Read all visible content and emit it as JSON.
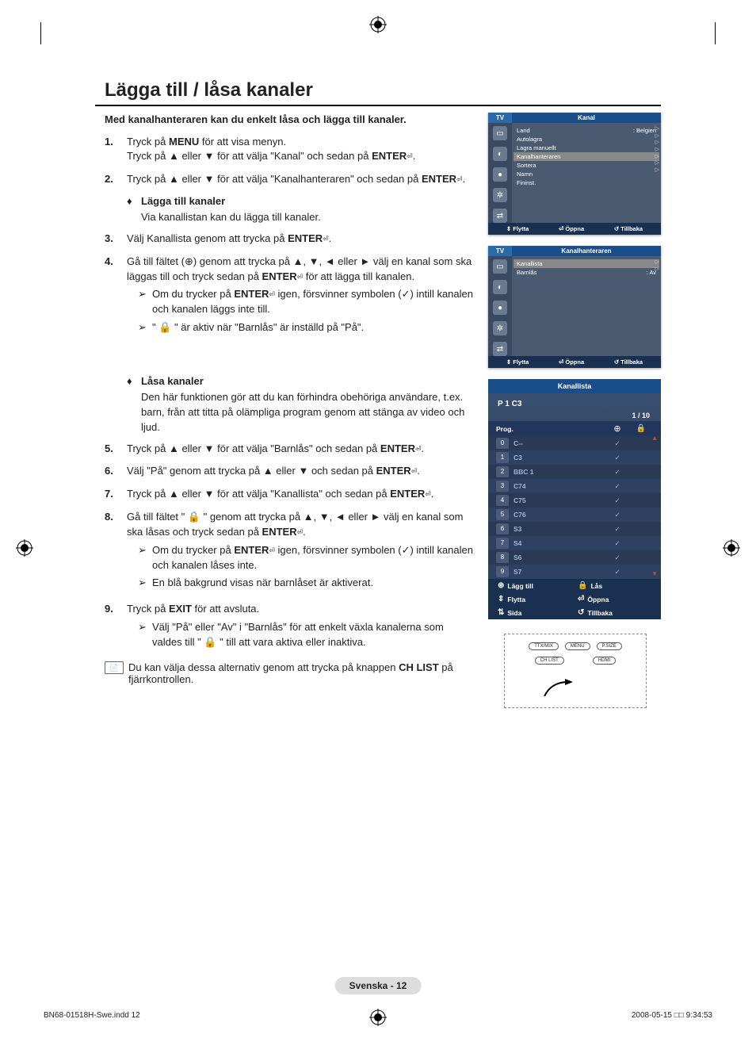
{
  "title": "Lägga till / låsa kanaler",
  "intro": "Med kanalhanteraren kan du enkelt låsa och lägga till kanaler.",
  "steps": [
    {
      "n": "1.",
      "body": "Tryck på <b>MENU</b> för att visa menyn.<br>Tryck på ▲ eller ▼ för att välja \"Kanal\" och sedan på <b>ENTER</b><span class='icon-enter'>⏎</span>."
    },
    {
      "n": "2.",
      "body": "Tryck på ▲ eller ▼ för att välja \"Kanalhanteraren\" och sedan på <b>ENTER</b><span class='icon-enter'>⏎</span>."
    }
  ],
  "sub1_head": "Lägga till kanaler",
  "sub1_body": "Via kanallistan kan du lägga till kanaler.",
  "steps2": [
    {
      "n": "3.",
      "body": "Välj Kanallista genom att trycka på <b>ENTER</b><span class='icon-enter'>⏎</span>."
    },
    {
      "n": "4.",
      "body": "Gå till fältet (⊕) genom att trycka på ▲, ▼, ◄ eller ►  välj en kanal som ska läggas till och tryck sedan på <b>ENTER</b><span class='icon-enter'>⏎</span> för att lägga till kanalen.",
      "notes": [
        "Om du trycker på <b>ENTER</b><span class='icon-enter'>⏎</span> igen, försvinner symbolen (✓) intill kanalen och kanalen läggs inte till.",
        "\" 🔒 \" är aktiv när \"Barnlås\" är inställd på \"På\"."
      ]
    }
  ],
  "sub2_head": "Låsa kanaler",
  "sub2_body": "Den här funktionen gör att du kan förhindra obehöriga användare, t.ex. barn, från att titta på olämpliga program genom att stänga av video och ljud.",
  "steps3": [
    {
      "n": "5.",
      "body": "Tryck på ▲ eller ▼ för att välja \"Barnlås\" och sedan på <b>ENTER</b><span class='icon-enter'>⏎</span>."
    },
    {
      "n": "6.",
      "body": "Välj \"På\" genom att trycka på ▲ eller ▼ och sedan på <b>ENTER</b><span class='icon-enter'>⏎</span>."
    },
    {
      "n": "7.",
      "body": "Tryck på ▲ eller ▼ för att välja \"Kanallista\" och sedan på <b>ENTER</b><span class='icon-enter'>⏎</span>."
    },
    {
      "n": "8.",
      "body": "Gå till fältet \" 🔒 \" genom att trycka på ▲, ▼, ◄ eller ► välj en kanal som ska låsas och tryck sedan på <b>ENTER</b><span class='icon-enter'>⏎</span>.",
      "notes": [
        "Om du trycker på <b>ENTER</b><span class='icon-enter'>⏎</span> igen, försvinner symbolen (✓) intill kanalen och kanalen låses inte.",
        "En blå bakgrund visas när barnlåset är aktiverat."
      ]
    },
    {
      "n": "9.",
      "body": "Tryck på <b>EXIT</b> för att avsluta.",
      "notes": [
        "Välj \"På\" eller \"Av\" i \"Barnlås\" för att enkelt växla kanalerna som valdes till \" 🔒 \" till att vara aktiva eller inaktiva."
      ]
    }
  ],
  "footnote": "Du kan välja dessa alternativ genom att trycka på knappen <b>CH LIST</b> på fjärrkontrollen.",
  "page_label": "Svenska - 12",
  "footer_left": "BN68-01518H-Swe.indd   12",
  "footer_right": "2008-05-15   □□ 9:34:53",
  "panel1": {
    "tab": "TV",
    "title": "Kanal",
    "items": [
      {
        "l": "Land",
        "r": ": Belgien"
      },
      {
        "l": "Autolagra",
        "r": ""
      },
      {
        "l": "Lagra manuellt",
        "r": ""
      },
      {
        "l": "Kanalhanteraren",
        "r": "",
        "hl": true
      },
      {
        "l": "Sortera",
        "r": ""
      },
      {
        "l": "Namn",
        "r": ""
      },
      {
        "l": "Fininst.",
        "r": ""
      }
    ],
    "foot": [
      "⇕ Flytta",
      "⏎ Öppna",
      "↺ Tillbaka"
    ]
  },
  "panel2": {
    "tab": "TV",
    "title": "Kanalhanteraren",
    "items": [
      {
        "l": "Kanallista",
        "r": "",
        "hl": true
      },
      {
        "l": "Barnlås",
        "r": ": Av"
      }
    ],
    "foot": [
      "⇕ Flytta",
      "⏎ Öppna",
      "↺ Tillbaka"
    ]
  },
  "chlist": {
    "title": "Kanallista",
    "sub": "P  1   C3",
    "pager": "1 / 10",
    "hdr": {
      "c1": "Prog.",
      "c2": "⊕",
      "c3": "🔒"
    },
    "rows": [
      {
        "n": "0",
        "name": "C--",
        "chk": "✓"
      },
      {
        "n": "1",
        "name": "C3",
        "chk": "✓"
      },
      {
        "n": "2",
        "name": "BBC 1",
        "chk": "✓"
      },
      {
        "n": "3",
        "name": "C74",
        "chk": "✓"
      },
      {
        "n": "4",
        "name": "C75",
        "chk": "✓"
      },
      {
        "n": "5",
        "name": "C76",
        "chk": "✓"
      },
      {
        "n": "6",
        "name": "S3",
        "chk": "✓"
      },
      {
        "n": "7",
        "name": "S4",
        "chk": "✓"
      },
      {
        "n": "8",
        "name": "S6",
        "chk": "✓"
      },
      {
        "n": "9",
        "name": "S7",
        "chk": "✓"
      }
    ],
    "actions": [
      [
        {
          "i": "⊕",
          "t": "Lägg till"
        },
        {
          "i": "🔒",
          "t": "Lås"
        }
      ],
      [
        {
          "i": "⇕",
          "t": "Flytta"
        },
        {
          "i": "⏎",
          "t": "Öppna"
        }
      ],
      [
        {
          "i": "⇅",
          "t": "Sida"
        },
        {
          "i": "↺",
          "t": "Tillbaka"
        }
      ]
    ]
  },
  "remote": {
    "row1": [
      "TTX/MIX",
      "MENU",
      "P.SIZE"
    ],
    "row2": [
      "CH LIST",
      "",
      "HDMI"
    ]
  },
  "colors": {
    "panel_bg": "#4a5a70",
    "panel_title": "#1a4e8a",
    "chlist_bg": "#2a3a55",
    "highlight": "#888888"
  }
}
